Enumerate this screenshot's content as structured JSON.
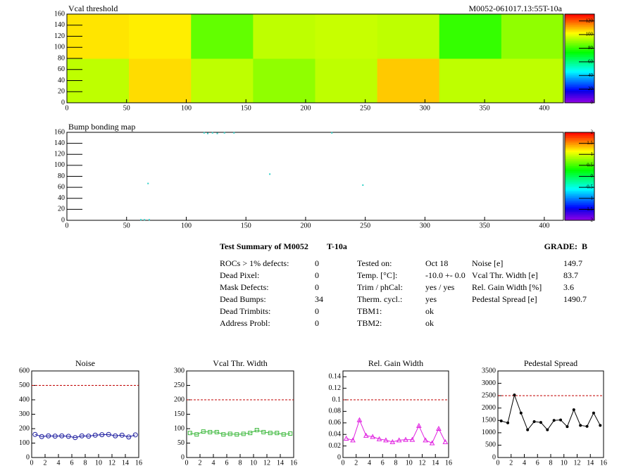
{
  "chart_data": [
    {
      "type": "heatmap",
      "title": "Vcal threshold",
      "subtitle": "M0052-061017.13:55T-10a",
      "xlim": [
        0,
        416
      ],
      "xticks": [
        0,
        50,
        100,
        150,
        200,
        250,
        300,
        350,
        400
      ],
      "ylim": [
        0,
        160
      ],
      "yticks": [
        0,
        20,
        40,
        60,
        80,
        100,
        120,
        140,
        160
      ],
      "zlim": [
        0,
        130
      ],
      "zticks": [
        0,
        20,
        40,
        60,
        80,
        100,
        120
      ],
      "z": [
        [
          95,
          106,
          95,
          90,
          95,
          108,
          95,
          95
        ],
        [
          105,
          104,
          85,
          95,
          96,
          95,
          80,
          90
        ]
      ]
    },
    {
      "type": "scatter-map",
      "title": "Bump bonding map",
      "xlim": [
        0,
        416
      ],
      "xticks": [
        0,
        50,
        100,
        150,
        200,
        250,
        300,
        350,
        400
      ],
      "ylim": [
        0,
        160
      ],
      "yticks": [
        0,
        20,
        40,
        60,
        80,
        100,
        120,
        140,
        160
      ],
      "zlim": [
        -2,
        2
      ],
      "zticks": [
        -2,
        -1.5,
        -1,
        -0.5,
        0,
        0.5,
        1,
        1.5,
        2
      ],
      "x": [
        115,
        118,
        122,
        126,
        132,
        140,
        170,
        68,
        248,
        62,
        65,
        69,
        222
      ],
      "y": [
        159,
        158,
        159,
        158,
        159,
        159,
        84,
        67,
        64,
        1,
        1,
        1,
        159
      ],
      "color": "#2fd0c8"
    },
    {
      "type": "line",
      "title": "Noise",
      "marker": "circle",
      "color": "#1a1a9e",
      "x": [
        0.5,
        1.5,
        2.5,
        3.5,
        4.5,
        5.5,
        6.5,
        7.5,
        8.5,
        9.5,
        10.5,
        11.5,
        12.5,
        13.5,
        14.5,
        15.5
      ],
      "values": [
        160,
        145,
        150,
        148,
        150,
        147,
        138,
        150,
        148,
        155,
        158,
        160,
        150,
        155,
        142,
        157
      ],
      "xlim": [
        0,
        16
      ],
      "xticks": [
        0,
        2,
        4,
        6,
        8,
        10,
        12,
        14,
        16
      ],
      "ylim": [
        0,
        600
      ],
      "yticks": [
        0,
        100,
        200,
        300,
        400,
        500,
        600
      ],
      "limit": 500
    },
    {
      "type": "line",
      "title": "Vcal Thr. Width",
      "marker": "square",
      "color": "#3cb83c",
      "x": [
        0.5,
        1.5,
        2.5,
        3.5,
        4.5,
        5.5,
        6.5,
        7.5,
        8.5,
        9.5,
        10.5,
        11.5,
        12.5,
        13.5,
        14.5,
        15.5
      ],
      "values": [
        85,
        80,
        90,
        88,
        88,
        80,
        82,
        80,
        82,
        85,
        95,
        88,
        85,
        85,
        80,
        83
      ],
      "xlim": [
        0,
        16
      ],
      "xticks": [
        0,
        2,
        4,
        6,
        8,
        10,
        12,
        14,
        16
      ],
      "ylim": [
        0,
        300
      ],
      "yticks": [
        0,
        50,
        100,
        150,
        200,
        250,
        300
      ],
      "limit": 200
    },
    {
      "type": "line",
      "title": "Rel. Gain Width",
      "marker": "triangle",
      "color": "#e020e0",
      "x": [
        0.5,
        1.5,
        2.5,
        3.5,
        4.5,
        5.5,
        6.5,
        7.5,
        8.5,
        9.5,
        10.5,
        11.5,
        12.5,
        13.5,
        14.5,
        15.5
      ],
      "values": [
        0.033,
        0.03,
        0.065,
        0.038,
        0.036,
        0.032,
        0.03,
        0.027,
        0.03,
        0.031,
        0.031,
        0.055,
        0.03,
        0.025,
        0.05,
        0.027
      ],
      "xlim": [
        0,
        16
      ],
      "xticks": [
        0,
        2,
        4,
        6,
        8,
        10,
        12,
        14,
        16
      ],
      "ylim": [
        0,
        0.15
      ],
      "yticks": [
        0,
        0.02,
        0.04,
        0.06,
        0.08,
        0.1,
        0.12,
        0.14
      ],
      "limit": 0.1
    },
    {
      "type": "line",
      "title": "Pedestal Spread",
      "marker": "dot",
      "color": "#000000",
      "x": [
        0.5,
        1.5,
        2.5,
        3.5,
        4.5,
        5.5,
        6.5,
        7.5,
        8.5,
        9.5,
        10.5,
        11.5,
        12.5,
        13.5,
        14.5,
        15.5
      ],
      "values": [
        1480,
        1400,
        2530,
        1800,
        1120,
        1450,
        1420,
        1120,
        1500,
        1520,
        1250,
        1930,
        1300,
        1260,
        1800,
        1300
      ],
      "xlim": [
        0,
        16
      ],
      "xticks": [
        0,
        2,
        4,
        6,
        8,
        10,
        12,
        14,
        16
      ],
      "ylim": [
        0,
        3500
      ],
      "yticks": [
        0,
        500,
        1000,
        1500,
        2000,
        2500,
        3000,
        3500
      ],
      "limit": 2500
    }
  ],
  "summary": {
    "title": "Test Summary of M0052",
    "tag": "T-10a",
    "grade": "GRADE:  B",
    "col1": [
      [
        "ROCs > 1% defects:",
        "0"
      ],
      [
        "Dead Pixel:",
        "0"
      ],
      [
        "Mask Defects:",
        "0"
      ],
      [
        "Dead Bumps:",
        "34"
      ],
      [
        "Dead Trimbits:",
        "0"
      ],
      [
        "Address Probl:",
        "0"
      ]
    ],
    "col2": [
      [
        "Tested on:",
        "Oct 18"
      ],
      [
        "Temp. [°C]:",
        "-10.0 +- 0.0"
      ],
      [
        "Trim / phCal:",
        "yes / yes"
      ],
      [
        "Therm. cycl.:",
        "yes"
      ],
      [
        "TBM1:",
        "ok"
      ],
      [
        "TBM2:",
        "ok"
      ]
    ],
    "col3": [
      [
        "Noise [e]",
        "149.7"
      ],
      [
        "Vcal Thr. Width [e]",
        "83.7"
      ],
      [
        "Rel. Gain Width [%]",
        "3.6"
      ],
      [
        "Pedestal Spread [e]",
        "1490.7"
      ]
    ]
  }
}
